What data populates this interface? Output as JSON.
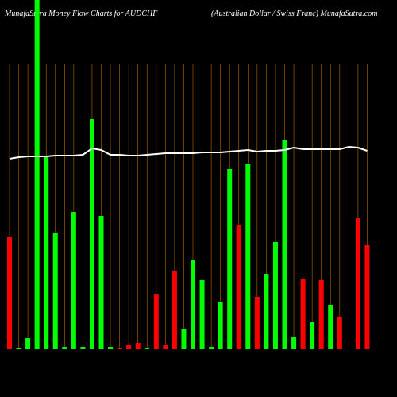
{
  "chart_data": {
    "type": "bar",
    "title": "MunafaSutra  Money Flow  Charts for AUDCHF",
    "subtitle": "(Australian  Dollar / Swiss Franc) MunafaSutra.com",
    "ylim": [
      0,
      440
    ],
    "series": [
      {
        "values": [
          142,
          2,
          14,
          440,
          242,
          147,
          3,
          173,
          3,
          290,
          168,
          3,
          2,
          5,
          8,
          2,
          70,
          6,
          99,
          26,
          113,
          87,
          3,
          60,
          227,
          157,
          234,
          66,
          95,
          135,
          264,
          16,
          89,
          35,
          87,
          56,
          41,
          0,
          165,
          131
        ],
        "colors": [
          "#ff0000",
          "#00ff00",
          "#00ff00",
          "#00ff00",
          "#00ff00",
          "#00ff00",
          "#00ff00",
          "#00ff00",
          "#00ff00",
          "#00ff00",
          "#00ff00",
          "#00ff00",
          "#ff0000",
          "#ff0000",
          "#ff0000",
          "#00ff00",
          "#ff0000",
          "#ff0000",
          "#ff0000",
          "#00ff00",
          "#00ff00",
          "#00ff00",
          "#00ff00",
          "#00ff00",
          "#00ff00",
          "#ff0000",
          "#00ff00",
          "#ff0000",
          "#00ff00",
          "#00ff00",
          "#00ff00",
          "#00ff00",
          "#ff0000",
          "#00ff00",
          "#ff0000",
          "#00ff00",
          "#ff0000",
          "#00ff00",
          "#ff0000",
          "#ff0000"
        ]
      },
      {
        "type": "line",
        "color": "#ffffff",
        "values": [
          240,
          242,
          243,
          243,
          243,
          244,
          244,
          244,
          245,
          253,
          251,
          245,
          245,
          244,
          244,
          245,
          246,
          247,
          247,
          247,
          247,
          248,
          248,
          248,
          249,
          250,
          251,
          249,
          250,
          250,
          251,
          254,
          252,
          252,
          252,
          252,
          252,
          255,
          254,
          250
        ]
      }
    ]
  }
}
